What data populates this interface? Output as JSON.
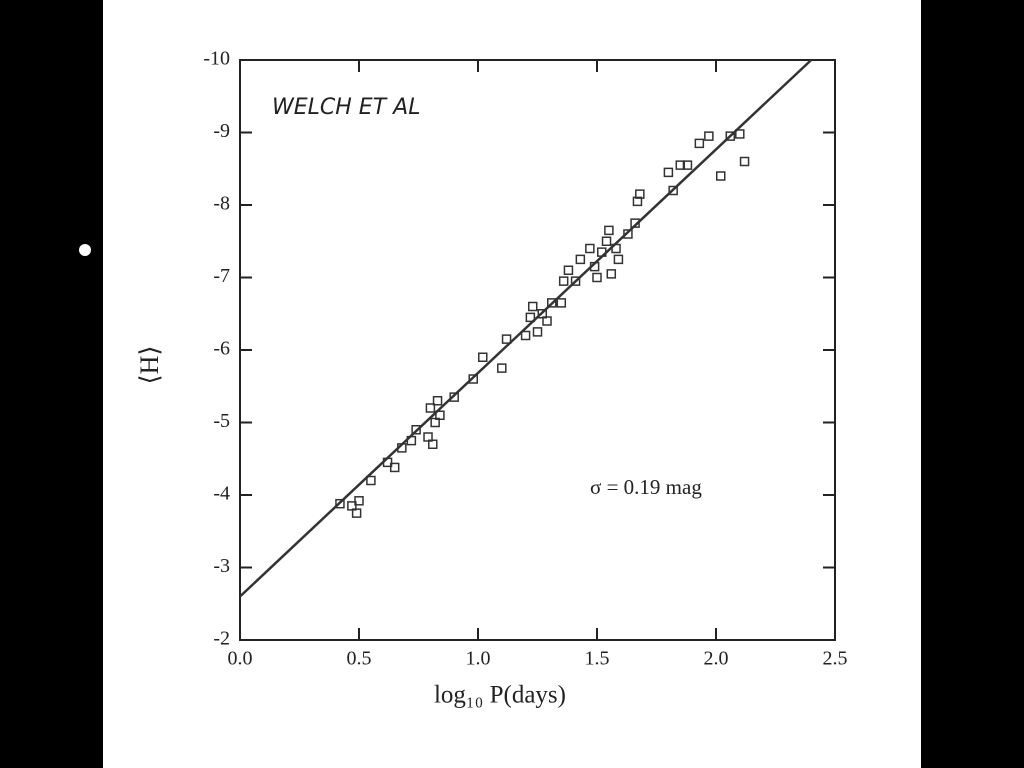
{
  "chart_data": {
    "type": "scatter",
    "note": "WELCH ET AL",
    "annotation": "σ =  0.19 mag",
    "x_label": "log₁₀ P(days)",
    "y_label": "⟨H⟩",
    "xlim": [
      0,
      2.5
    ],
    "ylim": [
      -2,
      -10
    ],
    "xticks": [
      {
        "value": 0,
        "label": "0.0"
      },
      0.5,
      {
        "value": 1,
        "label": "1.0"
      },
      1.5,
      {
        "value": 2,
        "label": "2.0"
      },
      2.5
    ],
    "yticks": [
      -10,
      -9,
      -8,
      -7,
      -6,
      -5,
      -4,
      -3,
      -2
    ],
    "color": "#333333",
    "x": [
      0.42,
      0.47,
      0.49,
      0.5,
      0.55,
      0.62,
      0.65,
      0.68,
      0.72,
      0.74,
      0.79,
      0.8,
      0.81,
      0.82,
      0.83,
      0.84,
      0.9,
      0.98,
      1.02,
      1.1,
      1.12,
      1.2,
      1.22,
      1.23,
      1.25,
      1.27,
      1.29,
      1.31,
      1.35,
      1.36,
      1.38,
      1.41,
      1.43,
      1.47,
      1.49,
      1.5,
      1.52,
      1.54,
      1.55,
      1.56,
      1.58,
      1.59,
      1.63,
      1.66,
      1.67,
      1.68,
      1.8,
      1.82,
      1.85,
      1.88,
      1.93,
      1.97,
      2.02,
      2.06,
      2.1,
      2.12
    ],
    "y": [
      -3.88,
      -3.85,
      -3.75,
      -3.92,
      -4.2,
      -4.45,
      -4.38,
      -4.65,
      -4.75,
      -4.9,
      -4.8,
      -5.2,
      -4.7,
      -5.0,
      -5.3,
      -5.1,
      -5.35,
      -5.6,
      -5.9,
      -5.75,
      -6.15,
      -6.2,
      -6.45,
      -6.6,
      -6.25,
      -6.5,
      -6.4,
      -6.65,
      -6.65,
      -6.95,
      -7.1,
      -6.95,
      -7.25,
      -7.4,
      -7.15,
      -7.0,
      -7.35,
      -7.5,
      -7.65,
      -7.05,
      -7.4,
      -7.25,
      -7.6,
      -7.75,
      -8.05,
      -8.15,
      -8.45,
      -8.2,
      -8.55,
      -8.55,
      -8.85,
      -8.95,
      -8.4,
      -8.95,
      -8.98,
      -8.6
    ],
    "fit": {
      "x": [
        0,
        2.4
      ],
      "y": [
        -2.6,
        -10
      ]
    }
  }
}
